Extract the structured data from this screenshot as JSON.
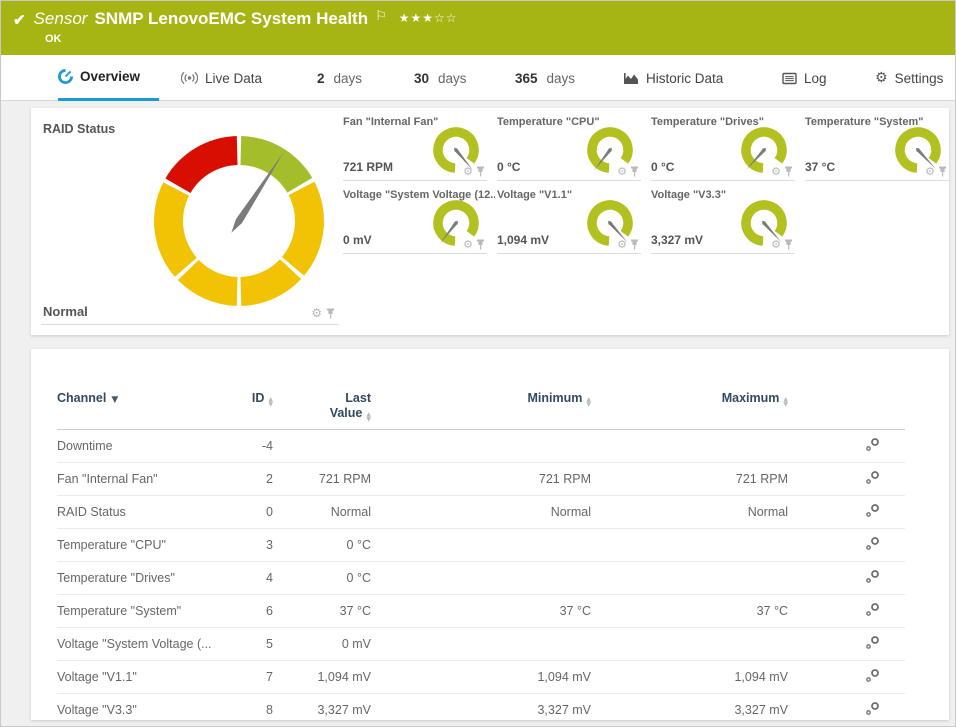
{
  "colors": {
    "header_green": "#a6b414",
    "tab_blue": "#1b9ad6",
    "green": "#a3bd2b",
    "yellow": "#f2c204",
    "red": "#d80f00",
    "gauge_small": "#b2c120",
    "needle": "#7b7b7b"
  },
  "header": {
    "kind_label": "Sensor",
    "title": "SNMP LenovoEMC System Health",
    "status": "OK",
    "stars_display": "★★★☆☆",
    "stars_filled": 3,
    "stars_total": 5
  },
  "tabs": [
    {
      "label": "Overview",
      "icon": "gauge-icon",
      "active": true
    },
    {
      "label": "Live Data",
      "icon": "broadcast-icon"
    },
    {
      "num": "2",
      "label": "days"
    },
    {
      "num": "30",
      "label": "days"
    },
    {
      "num": "365",
      "label": "days"
    },
    {
      "label": "Historic Data",
      "icon": "area-chart-icon"
    },
    {
      "label": "Log",
      "icon": "log-icon"
    },
    {
      "label": "Settings",
      "icon": "gear-icon"
    }
  ],
  "raid_gauge": {
    "title": "RAID Status",
    "value": "Normal",
    "needle_deg": 33,
    "segments": [
      {
        "from": 1.5,
        "to": 59.5,
        "color": "green"
      },
      {
        "from": 62.5,
        "to": 130,
        "color": "yellow"
      },
      {
        "from": 133,
        "to": 178.5,
        "color": "yellow"
      },
      {
        "from": 181.5,
        "to": 226,
        "color": "yellow"
      },
      {
        "from": 229,
        "to": 297,
        "color": "yellow"
      },
      {
        "from": 300,
        "to": 358.5,
        "color": "red"
      }
    ]
  },
  "gauges": [
    {
      "title": "Fan \"Internal Fan\"",
      "value": "721 RPM",
      "needle_deg": 140
    },
    {
      "title": "Temperature \"CPU\"",
      "value": "0 °C",
      "needle_deg": 218
    },
    {
      "title": "Temperature \"Drives\"",
      "value": "0 °C",
      "needle_deg": 222
    },
    {
      "title": "Temperature \"System\"",
      "value": "37 °C",
      "needle_deg": 137
    },
    {
      "title": "Voltage \"System Voltage (12...",
      "value": "0 mV",
      "needle_deg": 218
    },
    {
      "title": "Voltage \"V1.1\"",
      "value": "1,094 mV",
      "needle_deg": 138
    },
    {
      "title": "Voltage \"V3.3\"",
      "value": "3,327 mV",
      "needle_deg": 138
    }
  ],
  "table": {
    "headers": [
      {
        "label": "Channel",
        "sorted": "desc"
      },
      {
        "label": "ID"
      },
      {
        "label": "Last Value"
      },
      {
        "label": "Minimum"
      },
      {
        "label": "Maximum"
      }
    ],
    "rows": [
      {
        "channel": "Downtime",
        "id": "-4",
        "last": "",
        "min": "",
        "max": ""
      },
      {
        "channel": "Fan \"Internal Fan\"",
        "id": "2",
        "last": "721 RPM",
        "min": "721 RPM",
        "max": "721 RPM"
      },
      {
        "channel": "RAID Status",
        "id": "0",
        "last": "Normal",
        "min": "Normal",
        "max": "Normal"
      },
      {
        "channel": "Temperature \"CPU\"",
        "id": "3",
        "last": "0 °C",
        "min": "",
        "max": ""
      },
      {
        "channel": "Temperature \"Drives\"",
        "id": "4",
        "last": "0 °C",
        "min": "",
        "max": ""
      },
      {
        "channel": "Temperature \"System\"",
        "id": "6",
        "last": "37 °C",
        "min": "37 °C",
        "max": "37 °C"
      },
      {
        "channel": "Voltage \"System Voltage (...",
        "id": "5",
        "last": "0 mV",
        "min": "",
        "max": ""
      },
      {
        "channel": "Voltage \"V1.1\"",
        "id": "7",
        "last": "1,094 mV",
        "min": "1,094 mV",
        "max": "1,094 mV"
      },
      {
        "channel": "Voltage \"V3.3\"",
        "id": "8",
        "last": "3,327 mV",
        "min": "3,327 mV",
        "max": "3,327 mV"
      }
    ]
  }
}
